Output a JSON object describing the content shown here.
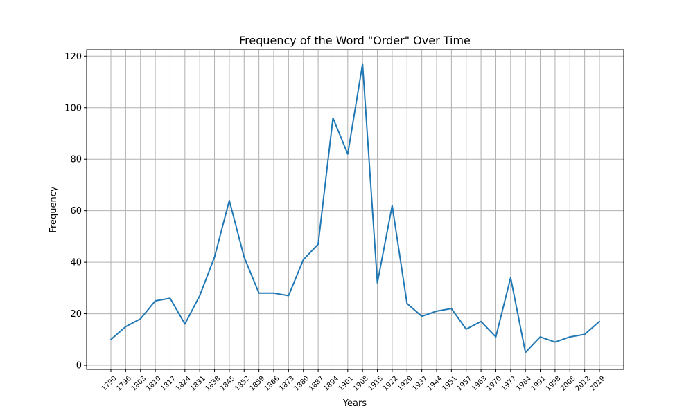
{
  "chart_data": {
    "type": "line",
    "title": "Frequency of the Word \"Order\" Over Time",
    "xlabel": "Years",
    "ylabel": "Frequency",
    "ylim": [
      -1.6,
      122.5
    ],
    "yticks": [
      0,
      20,
      40,
      60,
      80,
      100,
      120
    ],
    "grid": true,
    "line_color": "#1f77b4",
    "grid_color": "#b0b0b0",
    "categories": [
      "1790",
      "1796",
      "1803",
      "1810",
      "1817",
      "1824",
      "1831",
      "1838",
      "1845",
      "1852",
      "1859",
      "1866",
      "1873",
      "1880",
      "1887",
      "1894",
      "1901",
      "1908",
      "1915",
      "1922",
      "1929",
      "1937",
      "1944",
      "1951",
      "1957",
      "1963",
      "1970",
      "1977",
      "1984",
      "1991",
      "1998",
      "2005",
      "2012",
      "2019"
    ],
    "series": [
      {
        "values": [
          10,
          15,
          18,
          25,
          26,
          16,
          27,
          42,
          64,
          42,
          28,
          28,
          27,
          41,
          47,
          96,
          82,
          117,
          32,
          62,
          24,
          19,
          21,
          22,
          14,
          17,
          11,
          34,
          5,
          11,
          9,
          11,
          12,
          17
        ]
      }
    ]
  }
}
